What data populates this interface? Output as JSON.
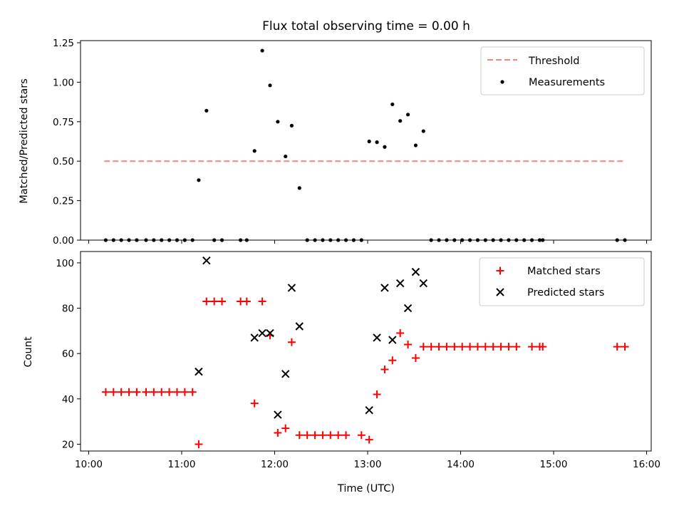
{
  "chart_data": [
    {
      "type": "scatter",
      "title": "Flux total observing time = 0.00 h",
      "xlabel": "",
      "ylabel": "Matched/Predicted stars",
      "xlim": [
        "10:00",
        "16:00"
      ],
      "ylim": [
        0,
        1.25
      ],
      "yticks": [
        "0.00",
        "0.25",
        "0.50",
        "0.75",
        "1.00",
        "1.25"
      ],
      "grid": false,
      "legend_position": "top-right",
      "series": [
        {
          "name": "Threshold",
          "kind": "line",
          "style": "dashed",
          "color": "#ff7f7f",
          "points": [
            {
              "x": "10:10",
              "y": 0.5
            },
            {
              "x": "15:45",
              "y": 0.5
            }
          ]
        },
        {
          "name": "Measurements",
          "kind": "scatter",
          "color": "#000000",
          "points": [
            {
              "x": "10:11",
              "y": 0.0
            },
            {
              "x": "10:16",
              "y": 0.0
            },
            {
              "x": "10:21",
              "y": 0.0
            },
            {
              "x": "10:26",
              "y": 0.0
            },
            {
              "x": "10:31",
              "y": 0.0
            },
            {
              "x": "10:37",
              "y": 0.0
            },
            {
              "x": "10:42",
              "y": 0.0
            },
            {
              "x": "10:47",
              "y": 0.0
            },
            {
              "x": "10:52",
              "y": 0.0
            },
            {
              "x": "10:57",
              "y": 0.0
            },
            {
              "x": "11:02",
              "y": 0.0
            },
            {
              "x": "11:07",
              "y": 0.0
            },
            {
              "x": "11:11",
              "y": 0.38
            },
            {
              "x": "11:16",
              "y": 0.82
            },
            {
              "x": "11:21",
              "y": 0.0
            },
            {
              "x": "11:26",
              "y": 0.0
            },
            {
              "x": "11:38",
              "y": 0.0
            },
            {
              "x": "11:42",
              "y": 0.0
            },
            {
              "x": "11:47",
              "y": 0.565
            },
            {
              "x": "11:52",
              "y": 1.2
            },
            {
              "x": "11:57",
              "y": 0.98
            },
            {
              "x": "12:02",
              "y": 0.75
            },
            {
              "x": "12:07",
              "y": 0.53
            },
            {
              "x": "12:11",
              "y": 0.725
            },
            {
              "x": "12:16",
              "y": 0.33
            },
            {
              "x": "12:21",
              "y": 0.0
            },
            {
              "x": "12:26",
              "y": 0.0
            },
            {
              "x": "12:31",
              "y": 0.0
            },
            {
              "x": "12:36",
              "y": 0.0
            },
            {
              "x": "12:41",
              "y": 0.0
            },
            {
              "x": "12:46",
              "y": 0.0
            },
            {
              "x": "12:51",
              "y": 0.0
            },
            {
              "x": "12:56",
              "y": 0.0
            },
            {
              "x": "13:01",
              "y": 0.625
            },
            {
              "x": "13:06",
              "y": 0.62
            },
            {
              "x": "13:11",
              "y": 0.59
            },
            {
              "x": "13:16",
              "y": 0.86
            },
            {
              "x": "13:21",
              "y": 0.755
            },
            {
              "x": "13:26",
              "y": 0.795
            },
            {
              "x": "13:31",
              "y": 0.6
            },
            {
              "x": "13:36",
              "y": 0.69
            },
            {
              "x": "13:41",
              "y": 0.0
            },
            {
              "x": "13:46",
              "y": 0.0
            },
            {
              "x": "13:51",
              "y": 0.0
            },
            {
              "x": "13:56",
              "y": 0.0
            },
            {
              "x": "14:01",
              "y": 0.0
            },
            {
              "x": "14:06",
              "y": 0.0
            },
            {
              "x": "14:11",
              "y": 0.0
            },
            {
              "x": "14:16",
              "y": 0.0
            },
            {
              "x": "14:21",
              "y": 0.0
            },
            {
              "x": "14:26",
              "y": 0.0
            },
            {
              "x": "14:31",
              "y": 0.0
            },
            {
              "x": "14:36",
              "y": 0.0
            },
            {
              "x": "14:41",
              "y": 0.0
            },
            {
              "x": "14:46",
              "y": 0.0
            },
            {
              "x": "14:51",
              "y": 0.0
            },
            {
              "x": "14:53",
              "y": 0.0
            },
            {
              "x": "15:41",
              "y": 0.0
            },
            {
              "x": "15:46",
              "y": 0.0
            }
          ]
        }
      ]
    },
    {
      "type": "scatter",
      "title": "",
      "xlabel": "Time (UTC)",
      "ylabel": "Count",
      "xlim": [
        "10:00",
        "16:00"
      ],
      "xticks": [
        "10:00",
        "11:00",
        "12:00",
        "13:00",
        "14:00",
        "15:00",
        "16:00"
      ],
      "ylim": [
        17,
        105
      ],
      "yticks": [
        "20",
        "40",
        "60",
        "80",
        "100"
      ],
      "grid": false,
      "legend_position": "top-right",
      "series": [
        {
          "name": "Matched stars",
          "kind": "plus",
          "color": "#ff0000",
          "points": [
            {
              "x": "10:11",
              "y": 43
            },
            {
              "x": "10:16",
              "y": 43
            },
            {
              "x": "10:21",
              "y": 43
            },
            {
              "x": "10:26",
              "y": 43
            },
            {
              "x": "10:31",
              "y": 43
            },
            {
              "x": "10:37",
              "y": 43
            },
            {
              "x": "10:42",
              "y": 43
            },
            {
              "x": "10:47",
              "y": 43
            },
            {
              "x": "10:52",
              "y": 43
            },
            {
              "x": "10:57",
              "y": 43
            },
            {
              "x": "11:02",
              "y": 43
            },
            {
              "x": "11:07",
              "y": 43
            },
            {
              "x": "11:11",
              "y": 20
            },
            {
              "x": "11:16",
              "y": 83
            },
            {
              "x": "11:21",
              "y": 83
            },
            {
              "x": "11:26",
              "y": 83
            },
            {
              "x": "11:38",
              "y": 83
            },
            {
              "x": "11:42",
              "y": 83
            },
            {
              "x": "11:47",
              "y": 38
            },
            {
              "x": "11:52",
              "y": 83
            },
            {
              "x": "11:57",
              "y": 68
            },
            {
              "x": "12:02",
              "y": 25
            },
            {
              "x": "12:07",
              "y": 27
            },
            {
              "x": "12:11",
              "y": 65
            },
            {
              "x": "12:16",
              "y": 24
            },
            {
              "x": "12:21",
              "y": 24
            },
            {
              "x": "12:26",
              "y": 24
            },
            {
              "x": "12:31",
              "y": 24
            },
            {
              "x": "12:36",
              "y": 24
            },
            {
              "x": "12:41",
              "y": 24
            },
            {
              "x": "12:46",
              "y": 24
            },
            {
              "x": "12:56",
              "y": 24
            },
            {
              "x": "13:01",
              "y": 22
            },
            {
              "x": "13:06",
              "y": 42
            },
            {
              "x": "13:11",
              "y": 53
            },
            {
              "x": "13:16",
              "y": 57
            },
            {
              "x": "13:21",
              "y": 69
            },
            {
              "x": "13:26",
              "y": 64
            },
            {
              "x": "13:31",
              "y": 58
            },
            {
              "x": "13:36",
              "y": 63
            },
            {
              "x": "13:41",
              "y": 63
            },
            {
              "x": "13:46",
              "y": 63
            },
            {
              "x": "13:51",
              "y": 63
            },
            {
              "x": "13:56",
              "y": 63
            },
            {
              "x": "14:01",
              "y": 63
            },
            {
              "x": "14:06",
              "y": 63
            },
            {
              "x": "14:11",
              "y": 63
            },
            {
              "x": "14:16",
              "y": 63
            },
            {
              "x": "14:21",
              "y": 63
            },
            {
              "x": "14:26",
              "y": 63
            },
            {
              "x": "14:31",
              "y": 63
            },
            {
              "x": "14:36",
              "y": 63
            },
            {
              "x": "14:46",
              "y": 63
            },
            {
              "x": "14:51",
              "y": 63
            },
            {
              "x": "14:53",
              "y": 63
            },
            {
              "x": "15:41",
              "y": 63
            },
            {
              "x": "15:46",
              "y": 63
            }
          ]
        },
        {
          "name": "Predicted stars",
          "kind": "x",
          "color": "#000000",
          "points": [
            {
              "x": "11:11",
              "y": 52
            },
            {
              "x": "11:16",
              "y": 101
            },
            {
              "x": "11:47",
              "y": 67
            },
            {
              "x": "11:52",
              "y": 69
            },
            {
              "x": "11:57",
              "y": 69
            },
            {
              "x": "12:02",
              "y": 33
            },
            {
              "x": "12:07",
              "y": 51
            },
            {
              "x": "12:11",
              "y": 89
            },
            {
              "x": "12:16",
              "y": 72
            },
            {
              "x": "13:01",
              "y": 35
            },
            {
              "x": "13:06",
              "y": 67
            },
            {
              "x": "13:11",
              "y": 89
            },
            {
              "x": "13:16",
              "y": 66
            },
            {
              "x": "13:21",
              "y": 91
            },
            {
              "x": "13:26",
              "y": 80
            },
            {
              "x": "13:31",
              "y": 96
            },
            {
              "x": "13:36",
              "y": 91
            }
          ]
        }
      ]
    }
  ]
}
